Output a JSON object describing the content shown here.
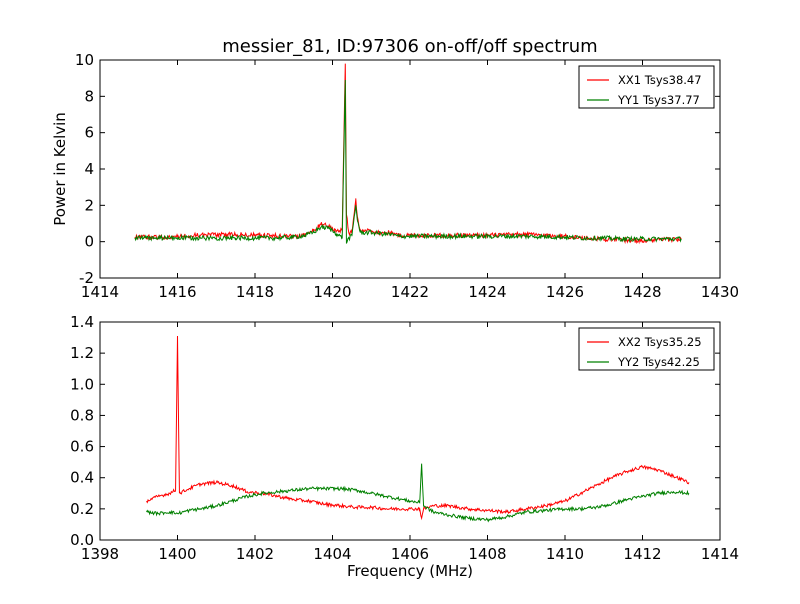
{
  "figure": {
    "title": "messier_81, ID:97306 on-off/off spectrum"
  },
  "colors": {
    "xx": "#ff0000",
    "yy": "#008000"
  },
  "chart_data": [
    {
      "type": "line",
      "title": "messier_81, ID:97306 on-off/off spectrum",
      "xlabel": "",
      "ylabel": "Power in Kelvin",
      "xlim": [
        1414,
        1430
      ],
      "ylim": [
        -2,
        10
      ],
      "xticks": [
        1414,
        1416,
        1418,
        1420,
        1422,
        1424,
        1426,
        1428,
        1430
      ],
      "yticks": [
        -2,
        0,
        2,
        4,
        6,
        8,
        10
      ],
      "grid": false,
      "legend": "top-right",
      "series": [
        {
          "name": "XX1 Tsys38.47",
          "color": "#ff0000",
          "x": [
            1414.9,
            1415.5,
            1416.0,
            1416.5,
            1417.0,
            1417.5,
            1418.0,
            1418.5,
            1419.0,
            1419.3,
            1419.5,
            1419.7,
            1419.9,
            1420.1,
            1420.25,
            1420.33,
            1420.36,
            1420.42,
            1420.5,
            1420.6,
            1420.65,
            1420.72,
            1420.8,
            1421.0,
            1421.2,
            1421.5,
            1421.7,
            1422.0,
            1423.0,
            1424.0,
            1425.0,
            1426.0,
            1426.5,
            1427.0,
            1427.5,
            1428.0,
            1428.5,
            1429.0
          ],
          "y": [
            0.25,
            0.25,
            0.3,
            0.35,
            0.38,
            0.4,
            0.35,
            0.32,
            0.3,
            0.4,
            0.6,
            0.95,
            0.85,
            0.6,
            0.6,
            9.8,
            1.5,
            0.5,
            0.5,
            2.3,
            1.3,
            0.6,
            0.6,
            0.6,
            0.5,
            0.5,
            0.35,
            0.35,
            0.35,
            0.35,
            0.4,
            0.3,
            0.2,
            0.15,
            0.1,
            0.05,
            0.1,
            0.15
          ]
        },
        {
          "name": "YY1 Tsys37.77",
          "color": "#008000",
          "x": [
            1414.9,
            1415.5,
            1416.0,
            1416.5,
            1417.0,
            1417.5,
            1418.0,
            1418.5,
            1419.0,
            1419.3,
            1419.5,
            1419.7,
            1419.9,
            1420.1,
            1420.25,
            1420.33,
            1420.36,
            1420.42,
            1420.5,
            1420.6,
            1420.65,
            1420.72,
            1420.8,
            1421.0,
            1421.2,
            1421.5,
            1421.7,
            1422.0,
            1423.0,
            1424.0,
            1425.0,
            1426.0,
            1426.5,
            1427.0,
            1427.5,
            1428.0,
            1428.5,
            1429.0
          ],
          "y": [
            0.2,
            0.2,
            0.2,
            0.2,
            0.2,
            0.2,
            0.2,
            0.2,
            0.25,
            0.35,
            0.5,
            0.8,
            0.75,
            0.45,
            0.2,
            8.9,
            -0.1,
            0.2,
            0.3,
            2.0,
            1.1,
            0.5,
            0.5,
            0.5,
            0.45,
            0.4,
            0.3,
            0.3,
            0.3,
            0.3,
            0.3,
            0.25,
            0.2,
            0.2,
            0.15,
            0.15,
            0.15,
            0.15
          ]
        }
      ]
    },
    {
      "type": "line",
      "title": "",
      "xlabel": "Frequency (MHz)",
      "ylabel": "",
      "xlim": [
        1398,
        1414
      ],
      "ylim": [
        0.0,
        1.4
      ],
      "xticks": [
        1398,
        1400,
        1402,
        1404,
        1406,
        1408,
        1410,
        1412,
        1414
      ],
      "yticks": [
        0.0,
        0.2,
        0.4,
        0.6,
        0.8,
        1.0,
        1.2,
        1.4
      ],
      "grid": false,
      "legend": "top-right",
      "series": [
        {
          "name": "XX2 Tsys35.25",
          "color": "#ff0000",
          "x": [
            1399.2,
            1399.5,
            1399.8,
            1399.95,
            1400.0,
            1400.05,
            1400.3,
            1400.6,
            1401.0,
            1401.4,
            1401.8,
            1402.2,
            1402.6,
            1403.0,
            1403.4,
            1403.8,
            1404.2,
            1404.6,
            1405.0,
            1405.4,
            1405.8,
            1406.0,
            1406.25,
            1406.3,
            1406.35,
            1406.6,
            1407.0,
            1407.5,
            1408.0,
            1408.5,
            1409.0,
            1409.5,
            1410.0,
            1410.4,
            1410.8,
            1411.2,
            1411.6,
            1412.0,
            1412.4,
            1412.8,
            1413.2
          ],
          "y": [
            0.25,
            0.28,
            0.3,
            0.32,
            1.31,
            0.3,
            0.33,
            0.36,
            0.37,
            0.35,
            0.31,
            0.3,
            0.28,
            0.26,
            0.25,
            0.23,
            0.22,
            0.21,
            0.21,
            0.2,
            0.2,
            0.2,
            0.2,
            0.14,
            0.2,
            0.22,
            0.22,
            0.2,
            0.19,
            0.18,
            0.2,
            0.22,
            0.25,
            0.3,
            0.35,
            0.4,
            0.44,
            0.47,
            0.45,
            0.41,
            0.37
          ]
        },
        {
          "name": "YY2 Tsys42.25",
          "color": "#008000",
          "x": [
            1399.2,
            1399.5,
            1399.8,
            1400.0,
            1400.3,
            1400.6,
            1401.0,
            1401.4,
            1401.8,
            1402.2,
            1402.6,
            1403.0,
            1403.4,
            1403.8,
            1404.2,
            1404.6,
            1405.0,
            1405.4,
            1405.8,
            1406.0,
            1406.25,
            1406.3,
            1406.35,
            1406.6,
            1407.0,
            1407.5,
            1408.0,
            1408.5,
            1409.0,
            1409.5,
            1410.0,
            1410.4,
            1410.8,
            1411.2,
            1411.6,
            1412.0,
            1412.4,
            1412.8,
            1413.2
          ],
          "y": [
            0.18,
            0.17,
            0.18,
            0.17,
            0.19,
            0.2,
            0.22,
            0.25,
            0.28,
            0.3,
            0.31,
            0.32,
            0.33,
            0.33,
            0.33,
            0.32,
            0.3,
            0.28,
            0.26,
            0.25,
            0.24,
            0.49,
            0.22,
            0.18,
            0.16,
            0.14,
            0.13,
            0.15,
            0.18,
            0.19,
            0.2,
            0.2,
            0.21,
            0.23,
            0.26,
            0.28,
            0.3,
            0.31,
            0.3
          ]
        }
      ]
    }
  ]
}
